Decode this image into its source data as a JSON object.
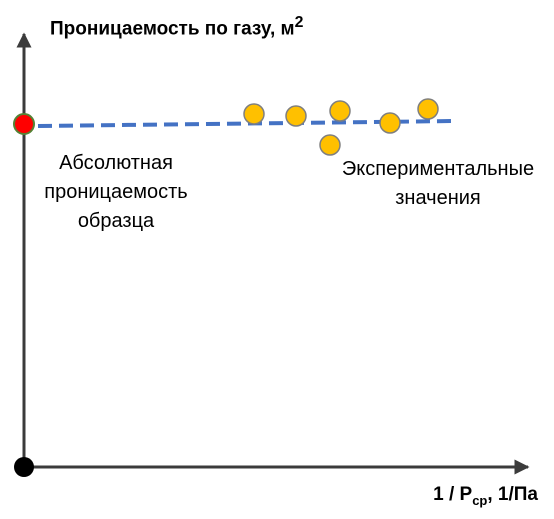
{
  "y_axis": {
    "title_main": "Проницаемость по газу, м",
    "title_sup": "2"
  },
  "x_axis": {
    "title_pre": "1 / P",
    "title_sub": "ср",
    "title_post": ", 1/Па"
  },
  "annotations": {
    "absolute": [
      "Абсолютная",
      "проницаемость",
      "образца"
    ],
    "experimental": [
      "Экспериментальные",
      "значения"
    ]
  },
  "colors": {
    "axis": "#3b3b3b",
    "trend_line": "#4472c4",
    "experimental_point": "#ffc000",
    "experimental_point_stroke": "#7f7f7f",
    "absolute_point": "#ff0000",
    "absolute_point_stroke": "#548235",
    "origin_point": "#000000"
  }
}
